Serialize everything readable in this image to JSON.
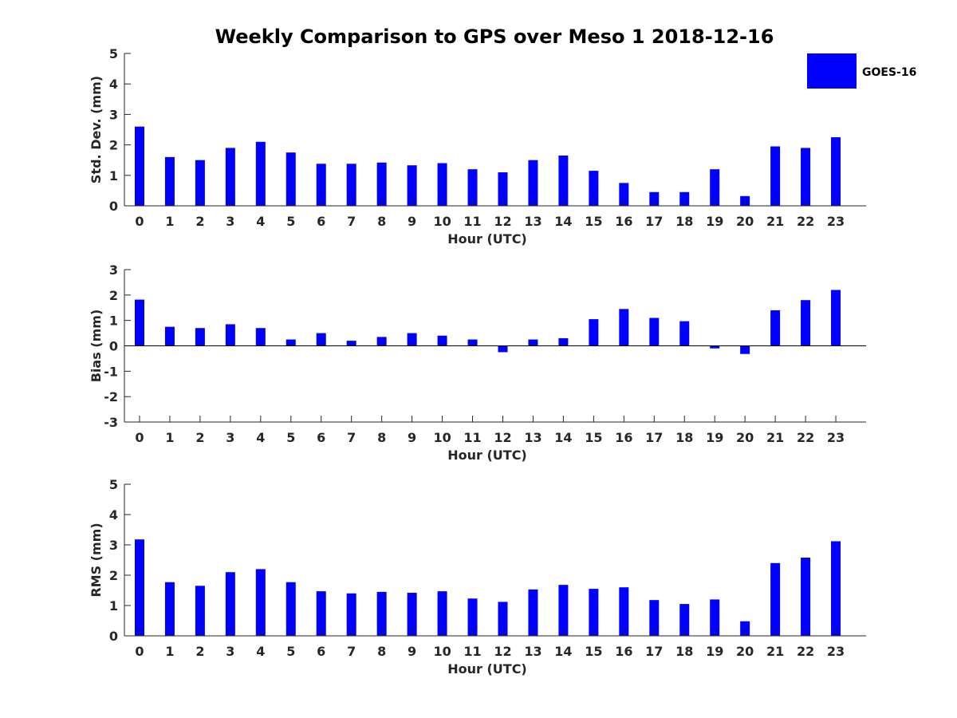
{
  "figure": {
    "title": "Weekly Comparison to GPS over Meso 1 2018-12-16",
    "legend": {
      "label": "GOES-16",
      "color": "#0000ff",
      "placement": "top-right"
    }
  },
  "chart_data": [
    {
      "type": "bar",
      "name": "std-dev",
      "xlabel": "Hour (UTC)",
      "ylabel": "Std. Dev. (mm)",
      "categories": [
        "0",
        "1",
        "2",
        "3",
        "4",
        "5",
        "6",
        "7",
        "8",
        "9",
        "10",
        "11",
        "12",
        "13",
        "14",
        "15",
        "16",
        "17",
        "18",
        "19",
        "20",
        "21",
        "22",
        "23"
      ],
      "series": [
        {
          "name": "GOES-16",
          "values": [
            2.6,
            1.6,
            1.5,
            1.9,
            2.1,
            1.75,
            1.38,
            1.38,
            1.42,
            1.33,
            1.4,
            1.2,
            1.1,
            1.5,
            1.65,
            1.15,
            0.75,
            0.45,
            0.45,
            1.2,
            0.32,
            1.95,
            1.9,
            2.25
          ]
        }
      ],
      "ylim": [
        0,
        5
      ],
      "yticks": [
        "0",
        "1",
        "2",
        "3",
        "4",
        "5"
      ]
    },
    {
      "type": "bar",
      "name": "bias",
      "xlabel": "Hour (UTC)",
      "ylabel": "Bias (mm)",
      "categories": [
        "0",
        "1",
        "2",
        "3",
        "4",
        "5",
        "6",
        "7",
        "8",
        "9",
        "10",
        "11",
        "12",
        "13",
        "14",
        "15",
        "16",
        "17",
        "18",
        "19",
        "20",
        "21",
        "22",
        "23"
      ],
      "series": [
        {
          "name": "GOES-16",
          "values": [
            1.82,
            0.75,
            0.7,
            0.85,
            0.7,
            0.25,
            0.5,
            0.2,
            0.35,
            0.5,
            0.4,
            0.25,
            -0.25,
            0.25,
            0.3,
            1.05,
            1.45,
            1.1,
            0.97,
            -0.1,
            -0.32,
            1.4,
            1.8,
            2.2
          ]
        }
      ],
      "ylim": [
        -3,
        3
      ],
      "yticks": [
        "-3",
        "-2",
        "-1",
        "0",
        "1",
        "2",
        "3"
      ]
    },
    {
      "type": "bar",
      "name": "rms",
      "xlabel": "Hour (UTC)",
      "ylabel": "RMS (mm)",
      "categories": [
        "0",
        "1",
        "2",
        "3",
        "4",
        "5",
        "6",
        "7",
        "8",
        "9",
        "10",
        "11",
        "12",
        "13",
        "14",
        "15",
        "16",
        "17",
        "18",
        "19",
        "20",
        "21",
        "22",
        "23"
      ],
      "series": [
        {
          "name": "GOES-16",
          "values": [
            3.18,
            1.77,
            1.65,
            2.1,
            2.2,
            1.77,
            1.47,
            1.4,
            1.45,
            1.42,
            1.47,
            1.23,
            1.12,
            1.53,
            1.68,
            1.55,
            1.6,
            1.18,
            1.05,
            1.2,
            0.48,
            2.4,
            2.58,
            3.12
          ]
        }
      ],
      "ylim": [
        0,
        5
      ],
      "yticks": [
        "0",
        "1",
        "2",
        "3",
        "4",
        "5"
      ]
    }
  ]
}
